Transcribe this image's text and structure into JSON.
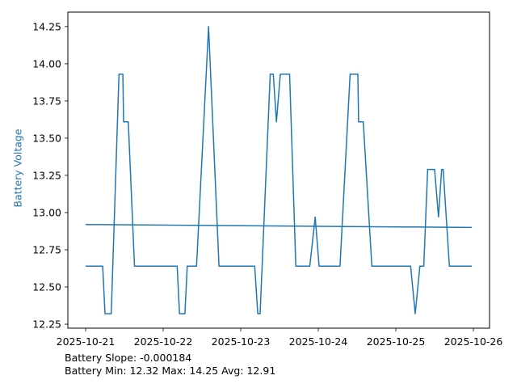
{
  "chart_data": {
    "type": "line",
    "title": "",
    "xlabel": "",
    "ylabel": "Battery Voltage",
    "x_origin_date": "2025-10-21",
    "x_unit": "days since 2025-10-21",
    "x_ticks": [
      "2025-10-21",
      "2025-10-22",
      "2025-10-23",
      "2025-10-24",
      "2025-10-25",
      "2025-10-26"
    ],
    "y_ticks": [
      "12.25",
      "12.50",
      "12.75",
      "13.00",
      "13.25",
      "13.50",
      "13.75",
      "14.00",
      "14.25"
    ],
    "xlim_days": [
      -0.229,
      5.208
    ],
    "ylim": [
      12.223,
      14.347
    ],
    "grid": false,
    "legend_position": "none",
    "colors": {
      "line": "#1f77b4",
      "trend": "#1f77b4",
      "ylabel": "#1f77b4",
      "axis": "#000000",
      "tick_label": "#000000",
      "background": "#ffffff"
    },
    "series": [
      {
        "name": "battery-voltage",
        "x_days": [
          0.0,
          0.22,
          0.25,
          0.33,
          0.43,
          0.48,
          0.49,
          0.55,
          0.63,
          1.18,
          1.21,
          1.28,
          1.31,
          1.43,
          1.585,
          1.72,
          2.18,
          2.22,
          2.25,
          2.38,
          2.42,
          2.46,
          2.51,
          2.63,
          2.71,
          2.89,
          2.96,
          3.01,
          3.28,
          3.41,
          3.51,
          3.52,
          3.58,
          3.69,
          4.19,
          4.25,
          4.31,
          4.36,
          4.41,
          4.5,
          4.55,
          4.59,
          4.61,
          4.69,
          4.98
        ],
        "values": [
          12.64,
          12.64,
          12.32,
          12.32,
          13.93,
          13.93,
          13.61,
          13.61,
          12.64,
          12.64,
          12.32,
          12.32,
          12.64,
          12.64,
          14.25,
          12.64,
          12.64,
          12.32,
          12.32,
          13.93,
          13.93,
          13.61,
          13.93,
          13.93,
          12.64,
          12.64,
          12.97,
          12.64,
          12.64,
          13.93,
          13.93,
          13.61,
          13.61,
          12.64,
          12.64,
          12.32,
          12.64,
          12.64,
          13.29,
          13.29,
          12.97,
          13.29,
          13.29,
          12.64,
          12.64
        ]
      },
      {
        "name": "trend-line",
        "x_days": [
          0.0,
          4.98
        ],
        "values": [
          12.92,
          12.9
        ]
      }
    ],
    "annotations": {
      "line1": "Battery Slope: -0.000184",
      "line2": "Battery Min: 12.32 Max: 14.25 Avg: 12.91"
    },
    "stats": {
      "slope": -0.000184,
      "min": 12.32,
      "max": 14.25,
      "avg": 12.91
    }
  }
}
